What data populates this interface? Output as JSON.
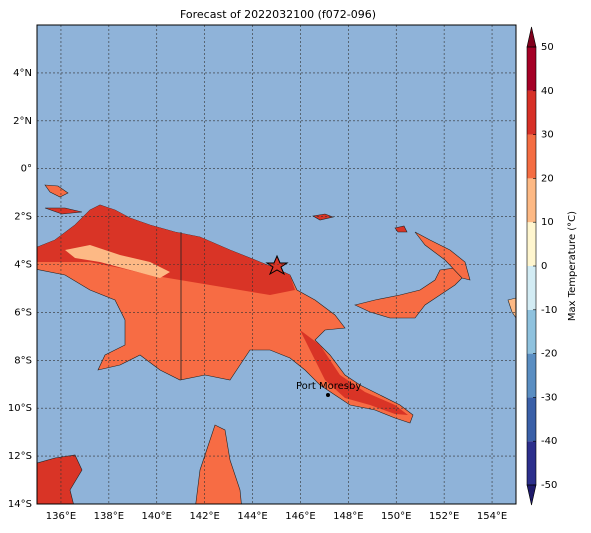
{
  "title": "Forecast of 2022032100 (f072-096)",
  "map": {
    "xlim": [
      135,
      155
    ],
    "ylim": [
      -14,
      6
    ],
    "xticks": [
      {
        "value": 136,
        "label": "136°E"
      },
      {
        "value": 138,
        "label": "138°E"
      },
      {
        "value": 140,
        "label": "140°E"
      },
      {
        "value": 142,
        "label": "142°E"
      },
      {
        "value": 144,
        "label": "144°E"
      },
      {
        "value": 146,
        "label": "146°E"
      },
      {
        "value": 148,
        "label": "148°E"
      },
      {
        "value": 150,
        "label": "150°E"
      },
      {
        "value": 152,
        "label": "152°E"
      },
      {
        "value": 154,
        "label": "154°E"
      }
    ],
    "yticks": [
      {
        "value": 4,
        "label": "4°N"
      },
      {
        "value": 2,
        "label": "2°N"
      },
      {
        "value": 0,
        "label": "0°"
      },
      {
        "value": -2,
        "label": "2°S"
      },
      {
        "value": -4,
        "label": "4°S"
      },
      {
        "value": -6,
        "label": "6°S"
      },
      {
        "value": -8,
        "label": "8°S"
      },
      {
        "value": -10,
        "label": "10°S"
      },
      {
        "value": -12,
        "label": "12°S"
      },
      {
        "value": -14,
        "label": "14°S"
      }
    ],
    "grid": true,
    "places": [
      {
        "name": "Port Moresby",
        "lon": 147.15,
        "lat": -9.45
      }
    ]
  },
  "colorbar": {
    "label": "Max Temperature (°C)",
    "lim": [
      -50,
      50
    ],
    "ticks": [
      -50,
      -40,
      -30,
      -20,
      -10,
      0,
      10,
      20,
      30,
      40,
      50
    ],
    "colors": [
      "#2c2f8c",
      "#3a60a8",
      "#5a8ec2",
      "#8fc2de",
      "#d3ecf4",
      "#fff6cf",
      "#fdb985",
      "#f46d43",
      "#d73027",
      "#a50026"
    ],
    "under_color": "#1e1a6b",
    "over_color": "#80001c"
  }
}
